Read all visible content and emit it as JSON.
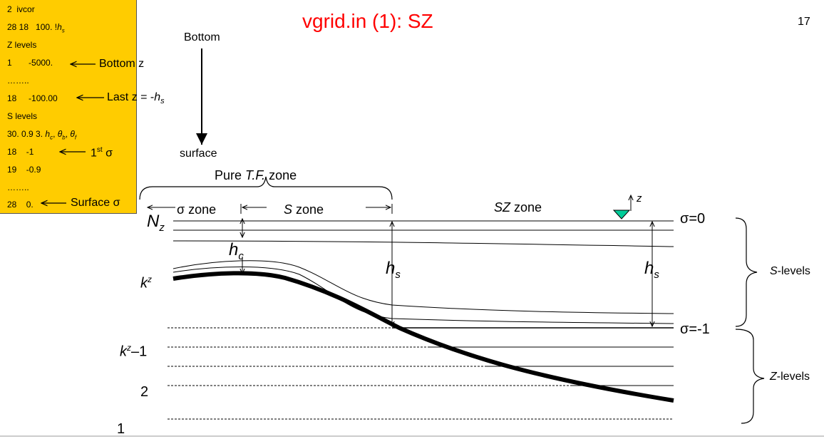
{
  "title": "vgrid.in (1): SZ",
  "page_number": "17",
  "code_box": {
    "lines": [
      {
        "n": "2",
        "v": "ivcor"
      },
      {
        "n": "28 18",
        "v": "100. !",
        "sym": "h",
        "sub": "s"
      },
      {
        "n": "Z levels",
        "v": ""
      },
      {
        "n": "1",
        "v": "-5000."
      },
      {
        "n": "……..",
        "v": ""
      },
      {
        "n": "18",
        "v": "-100.00"
      },
      {
        "n": "S levels",
        "v": ""
      },
      {
        "n": "30. 0.9 3.",
        "v": ""
      },
      {
        "n": "18",
        "v": "-1"
      },
      {
        "n": "19",
        "v": "-0.9"
      },
      {
        "n": "……..",
        "v": ""
      },
      {
        "n": "28",
        "v": "0."
      }
    ],
    "params": {
      "hc": "h",
      "hc_sub": "c",
      "tb": "θ",
      "tb_sub": "b",
      "tf": "θ",
      "tf_sub": "f"
    }
  },
  "annotations": {
    "bottom_z": "Bottom z",
    "last_z": "Last z = -",
    "last_z_sym": "h",
    "last_z_sub": "s",
    "first_sigma_pre": "1",
    "first_sigma_sup": "st",
    "first_sigma_post": " σ",
    "surface_sigma": "Surface σ"
  },
  "arrow_labels": {
    "top": "Bottom",
    "bottom": "surface"
  },
  "zones": {
    "pure_tf": "Pure ",
    "pure_tf_ital": "T.F.",
    "pure_tf_suffix": " zone",
    "sigma_zone": "σ zone",
    "s_zone_ital": "S",
    "s_zone_suffix": " zone",
    "sz_zone_ital": "SZ",
    "sz_zone_suffix": " zone"
  },
  "left_labels": {
    "nz": "N",
    "nz_sub": "z",
    "hc": "h",
    "hc_sub": "c",
    "kz": "k",
    "kz_sup": "z",
    "kz1": "k",
    "kz1_sup": "z",
    "kz1_suffix": "–1",
    "two": "2",
    "one": "1"
  },
  "hs_labels": {
    "sym": "h",
    "sub": "s"
  },
  "sigma_labels": {
    "top": "σ=0",
    "bottom": "σ=-1"
  },
  "z_axis_label": "z",
  "level_labels": {
    "s_ital": "S",
    "s_suffix": "-levels",
    "z_ital": "Z",
    "z_suffix": "-levels"
  },
  "colors": {
    "code_box_bg": "#FFCC00",
    "title": "#ff0000",
    "water_marker": "#00CC99"
  }
}
